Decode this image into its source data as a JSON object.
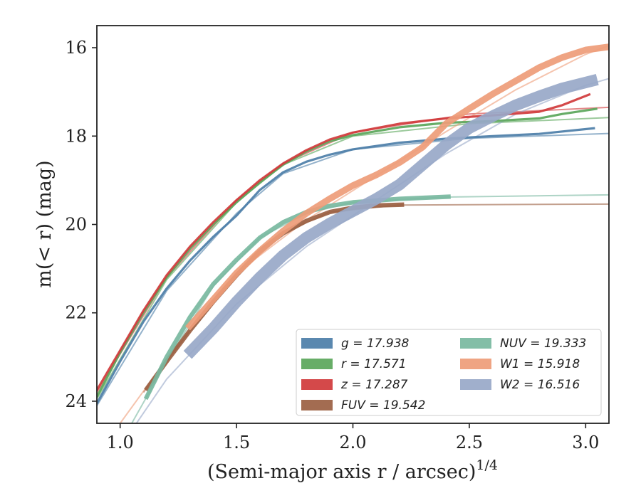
{
  "chart_data": {
    "type": "line",
    "xlabel": "(Semi-major axis r / arcsec)",
    "xlabel_exponent": "1/4",
    "ylabel": "m(< r) (mag)",
    "xlim": [
      0.9,
      3.1
    ],
    "ylim": [
      24.5,
      15.5
    ],
    "y_inverted": true,
    "x_ticks": [
      {
        "value": 1.0,
        "label": "1.0"
      },
      {
        "value": 1.5,
        "label": "1.5"
      },
      {
        "value": 2.0,
        "label": "2.0"
      },
      {
        "value": 2.5,
        "label": "2.5"
      },
      {
        "value": 3.0,
        "label": "3.0"
      }
    ],
    "y_ticks": [
      {
        "value": 16,
        "label": "16"
      },
      {
        "value": 18,
        "label": "18"
      },
      {
        "value": 20,
        "label": "20"
      },
      {
        "value": 22,
        "label": "22"
      },
      {
        "value": 24,
        "label": "24"
      }
    ],
    "grid": false,
    "legend_position": "lower-right",
    "series": [
      {
        "name": "g = 17.938",
        "color": "#4c7ea8",
        "data": [
          [
            0.9,
            24.05
          ],
          [
            1.0,
            23.1
          ],
          [
            1.1,
            22.2
          ],
          [
            1.2,
            21.45
          ],
          [
            1.3,
            20.82
          ],
          [
            1.4,
            20.28
          ],
          [
            1.5,
            19.8
          ],
          [
            1.6,
            19.22
          ],
          [
            1.7,
            18.82
          ],
          [
            1.8,
            18.58
          ],
          [
            1.9,
            18.42
          ],
          [
            2.0,
            18.3
          ],
          [
            2.2,
            18.15
          ],
          [
            2.4,
            18.06
          ],
          [
            2.6,
            18.0
          ],
          [
            2.8,
            17.95
          ],
          [
            3.04,
            17.82
          ]
        ],
        "model": [
          [
            0.9,
            24.1
          ],
          [
            1.2,
            21.5
          ],
          [
            1.5,
            19.75
          ],
          [
            1.7,
            18.85
          ],
          [
            2.0,
            18.3
          ],
          [
            2.5,
            18.05
          ],
          [
            3.1,
            17.94
          ]
        ],
        "width": 1.0
      },
      {
        "name": "r = 17.571",
        "color": "#5aa65a",
        "data": [
          [
            0.9,
            23.9
          ],
          [
            1.0,
            22.9
          ],
          [
            1.1,
            22.0
          ],
          [
            1.2,
            21.2
          ],
          [
            1.3,
            20.55
          ],
          [
            1.4,
            20.0
          ],
          [
            1.5,
            19.5
          ],
          [
            1.6,
            19.05
          ],
          [
            1.7,
            18.65
          ],
          [
            1.8,
            18.35
          ],
          [
            1.9,
            18.12
          ],
          [
            2.0,
            17.98
          ],
          [
            2.2,
            17.8
          ],
          [
            2.4,
            17.7
          ],
          [
            2.6,
            17.66
          ],
          [
            2.8,
            17.6
          ],
          [
            2.9,
            17.5
          ],
          [
            3.05,
            17.38
          ]
        ],
        "model": [
          [
            0.9,
            23.95
          ],
          [
            1.2,
            21.25
          ],
          [
            1.5,
            19.5
          ],
          [
            1.7,
            18.65
          ],
          [
            2.0,
            18.0
          ],
          [
            2.5,
            17.72
          ],
          [
            3.1,
            17.58
          ]
        ],
        "width": 1.0
      },
      {
        "name": "z = 17.287",
        "color": "#d0393b",
        "data": [
          [
            0.9,
            23.75
          ],
          [
            1.0,
            22.85
          ],
          [
            1.1,
            21.95
          ],
          [
            1.2,
            21.15
          ],
          [
            1.3,
            20.5
          ],
          [
            1.4,
            19.95
          ],
          [
            1.5,
            19.45
          ],
          [
            1.6,
            19.0
          ],
          [
            1.7,
            18.62
          ],
          [
            1.8,
            18.32
          ],
          [
            1.9,
            18.08
          ],
          [
            2.0,
            17.92
          ],
          [
            2.2,
            17.72
          ],
          [
            2.4,
            17.6
          ],
          [
            2.6,
            17.53
          ],
          [
            2.8,
            17.45
          ],
          [
            2.9,
            17.3
          ],
          [
            3.02,
            17.05
          ]
        ],
        "model": [
          [
            0.9,
            23.8
          ],
          [
            1.2,
            21.2
          ],
          [
            1.5,
            19.45
          ],
          [
            1.7,
            18.62
          ],
          [
            2.0,
            17.92
          ],
          [
            2.5,
            17.5
          ],
          [
            3.1,
            17.35
          ]
        ],
        "width": 1.0
      },
      {
        "name": "FUV = 19.542",
        "color": "#9b6042",
        "data": [
          [
            1.11,
            23.75
          ],
          [
            1.2,
            23.1
          ],
          [
            1.3,
            22.4
          ],
          [
            1.4,
            21.75
          ],
          [
            1.5,
            21.15
          ],
          [
            1.6,
            20.6
          ],
          [
            1.7,
            20.2
          ],
          [
            1.8,
            19.92
          ],
          [
            1.9,
            19.72
          ],
          [
            2.0,
            19.62
          ],
          [
            2.1,
            19.57
          ],
          [
            2.22,
            19.55
          ]
        ],
        "model": [
          [
            1.1,
            23.8
          ],
          [
            1.3,
            22.4
          ],
          [
            1.5,
            21.15
          ],
          [
            1.7,
            20.2
          ],
          [
            1.9,
            19.72
          ],
          [
            2.2,
            19.56
          ],
          [
            3.1,
            19.54
          ]
        ],
        "width": 4.0
      },
      {
        "name": "NUV = 19.333",
        "color": "#78b8a0",
        "data": [
          [
            1.11,
            23.95
          ],
          [
            1.2,
            23.0
          ],
          [
            1.3,
            22.1
          ],
          [
            1.4,
            21.35
          ],
          [
            1.5,
            20.8
          ],
          [
            1.6,
            20.3
          ],
          [
            1.7,
            19.95
          ],
          [
            1.8,
            19.72
          ],
          [
            1.9,
            19.58
          ],
          [
            2.0,
            19.5
          ],
          [
            2.2,
            19.42
          ],
          [
            2.42,
            19.37
          ]
        ],
        "model": [
          [
            1.05,
            24.5
          ],
          [
            1.2,
            23.1
          ],
          [
            1.4,
            21.4
          ],
          [
            1.6,
            20.3
          ],
          [
            1.8,
            19.75
          ],
          [
            2.0,
            19.5
          ],
          [
            2.4,
            19.38
          ],
          [
            3.1,
            19.33
          ]
        ],
        "width": 4.0
      },
      {
        "name": "W1 = 15.918",
        "color": "#ee9c78",
        "data": [
          [
            1.29,
            22.35
          ],
          [
            1.4,
            21.7
          ],
          [
            1.5,
            21.1
          ],
          [
            1.6,
            20.6
          ],
          [
            1.7,
            20.15
          ],
          [
            1.8,
            19.75
          ],
          [
            1.9,
            19.42
          ],
          [
            2.0,
            19.12
          ],
          [
            2.1,
            18.88
          ],
          [
            2.2,
            18.6
          ],
          [
            2.3,
            18.25
          ],
          [
            2.4,
            17.72
          ],
          [
            2.5,
            17.38
          ],
          [
            2.6,
            17.05
          ],
          [
            2.7,
            16.75
          ],
          [
            2.8,
            16.45
          ],
          [
            2.9,
            16.22
          ],
          [
            3.0,
            16.05
          ],
          [
            3.1,
            15.98
          ]
        ],
        "model": [
          [
            1.0,
            24.5
          ],
          [
            1.2,
            23.05
          ],
          [
            1.5,
            21.1
          ],
          [
            1.8,
            19.9
          ],
          [
            2.1,
            18.9
          ],
          [
            2.4,
            17.9
          ],
          [
            2.7,
            16.95
          ],
          [
            3.0,
            16.15
          ],
          [
            3.1,
            15.95
          ]
        ],
        "width": 7.0
      },
      {
        "name": "W2 = 16.516",
        "color": "#98a8c8",
        "data": [
          [
            1.29,
            22.95
          ],
          [
            1.4,
            22.35
          ],
          [
            1.5,
            21.75
          ],
          [
            1.6,
            21.2
          ],
          [
            1.7,
            20.7
          ],
          [
            1.8,
            20.3
          ],
          [
            1.9,
            19.98
          ],
          [
            2.0,
            19.7
          ],
          [
            2.1,
            19.42
          ],
          [
            2.2,
            19.1
          ],
          [
            2.3,
            18.65
          ],
          [
            2.4,
            18.2
          ],
          [
            2.5,
            17.82
          ],
          [
            2.6,
            17.55
          ],
          [
            2.7,
            17.3
          ],
          [
            2.8,
            17.1
          ],
          [
            2.9,
            16.92
          ],
          [
            3.05,
            16.72
          ]
        ],
        "model": [
          [
            1.07,
            24.5
          ],
          [
            1.2,
            23.5
          ],
          [
            1.5,
            21.8
          ],
          [
            1.8,
            20.5
          ],
          [
            2.1,
            19.45
          ],
          [
            2.4,
            18.4
          ],
          [
            2.7,
            17.5
          ],
          [
            3.0,
            16.85
          ],
          [
            3.1,
            16.7
          ]
        ],
        "width": 14.0
      }
    ]
  }
}
